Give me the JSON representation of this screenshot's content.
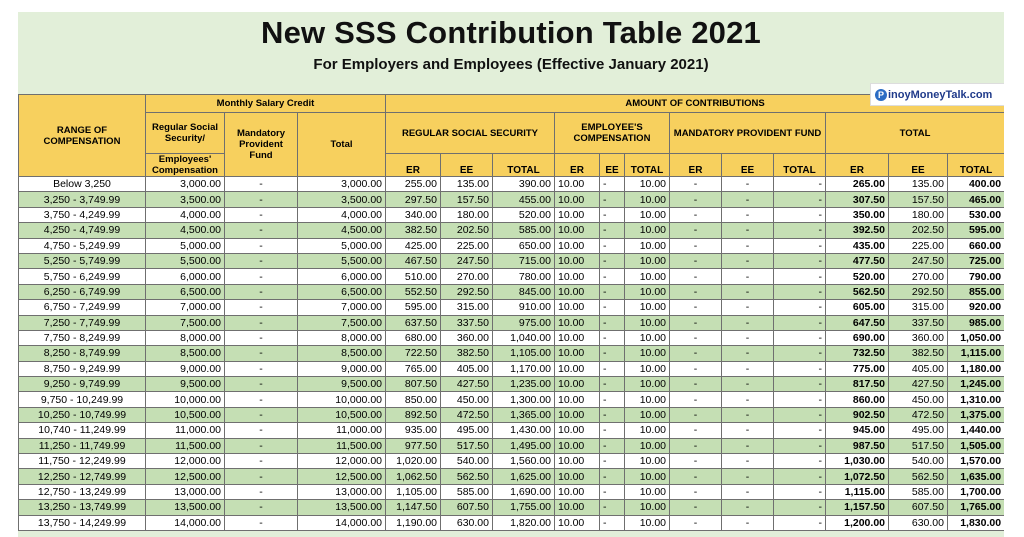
{
  "title": "New SSS Contribution Table 2021",
  "subtitle": "For Employers and Employees (Effective January 2021)",
  "logo": {
    "icon": "P",
    "text": "inoyMoneyTalk.com"
  },
  "headers": {
    "range": "RANGE OF COMPENSATION",
    "monthly_salary_credit": "Monthly Salary Credit",
    "regular_social_security_employees_compensation": "Regular Social Security/",
    "employees_compensation": "Employees' Compensation",
    "mandatory_provident_fund": "Mandatory Provident Fund",
    "total": "Total",
    "amount_of_contributions": "AMOUNT OF CONTRIBUTIONS",
    "regular_social_security": "REGULAR SOCIAL SECURITY",
    "employees_compensation_caps": "EMPLOYEE'S COMPENSATION",
    "mandatory_provident_fund_caps": "MANDATORY PROVIDENT FUND",
    "total_caps": "TOTAL",
    "er": "ER",
    "ee": "EE",
    "total_sub": "TOTAL"
  },
  "rows": [
    [
      "Below 3,250",
      "3,000.00",
      "-",
      "3,000.00",
      "255.00",
      "135.00",
      "390.00",
      "10.00",
      "-",
      "10.00",
      "-",
      "-",
      "-",
      "265.00",
      "135.00",
      "400.00"
    ],
    [
      "3,250 - 3,749.99",
      "3,500.00",
      "-",
      "3,500.00",
      "297.50",
      "157.50",
      "455.00",
      "10.00",
      "-",
      "10.00",
      "-",
      "-",
      "-",
      "307.50",
      "157.50",
      "465.00"
    ],
    [
      "3,750 - 4,249.99",
      "4,000.00",
      "-",
      "4,000.00",
      "340.00",
      "180.00",
      "520.00",
      "10.00",
      "-",
      "10.00",
      "-",
      "-",
      "-",
      "350.00",
      "180.00",
      "530.00"
    ],
    [
      "4,250 - 4,749.99",
      "4,500.00",
      "-",
      "4,500.00",
      "382.50",
      "202.50",
      "585.00",
      "10.00",
      "-",
      "10.00",
      "-",
      "-",
      "-",
      "392.50",
      "202.50",
      "595.00"
    ],
    [
      "4,750 - 5,249.99",
      "5,000.00",
      "-",
      "5,000.00",
      "425.00",
      "225.00",
      "650.00",
      "10.00",
      "-",
      "10.00",
      "-",
      "-",
      "-",
      "435.00",
      "225.00",
      "660.00"
    ],
    [
      "5,250 - 5,749.99",
      "5,500.00",
      "-",
      "5,500.00",
      "467.50",
      "247.50",
      "715.00",
      "10.00",
      "-",
      "10.00",
      "-",
      "-",
      "-",
      "477.50",
      "247.50",
      "725.00"
    ],
    [
      "5,750 - 6,249.99",
      "6,000.00",
      "-",
      "6,000.00",
      "510.00",
      "270.00",
      "780.00",
      "10.00",
      "-",
      "10.00",
      "-",
      "-",
      "-",
      "520.00",
      "270.00",
      "790.00"
    ],
    [
      "6,250 - 6,749.99",
      "6,500.00",
      "-",
      "6,500.00",
      "552.50",
      "292.50",
      "845.00",
      "10.00",
      "-",
      "10.00",
      "-",
      "-",
      "-",
      "562.50",
      "292.50",
      "855.00"
    ],
    [
      "6,750 - 7,249.99",
      "7,000.00",
      "-",
      "7,000.00",
      "595.00",
      "315.00",
      "910.00",
      "10.00",
      "-",
      "10.00",
      "-",
      "-",
      "-",
      "605.00",
      "315.00",
      "920.00"
    ],
    [
      "7,250 - 7,749.99",
      "7,500.00",
      "-",
      "7,500.00",
      "637.50",
      "337.50",
      "975.00",
      "10.00",
      "-",
      "10.00",
      "-",
      "-",
      "-",
      "647.50",
      "337.50",
      "985.00"
    ],
    [
      "7,750 - 8,249.99",
      "8,000.00",
      "-",
      "8,000.00",
      "680.00",
      "360.00",
      "1,040.00",
      "10.00",
      "-",
      "10.00",
      "-",
      "-",
      "-",
      "690.00",
      "360.00",
      "1,050.00"
    ],
    [
      "8,250 - 8,749.99",
      "8,500.00",
      "-",
      "8,500.00",
      "722.50",
      "382.50",
      "1,105.00",
      "10.00",
      "-",
      "10.00",
      "-",
      "-",
      "-",
      "732.50",
      "382.50",
      "1,115.00"
    ],
    [
      "8,750 - 9,249.99",
      "9,000.00",
      "-",
      "9,000.00",
      "765.00",
      "405.00",
      "1,170.00",
      "10.00",
      "-",
      "10.00",
      "-",
      "-",
      "-",
      "775.00",
      "405.00",
      "1,180.00"
    ],
    [
      "9,250 - 9,749.99",
      "9,500.00",
      "-",
      "9,500.00",
      "807.50",
      "427.50",
      "1,235.00",
      "10.00",
      "-",
      "10.00",
      "-",
      "-",
      "-",
      "817.50",
      "427.50",
      "1,245.00"
    ],
    [
      "9,750 - 10,249.99",
      "10,000.00",
      "-",
      "10,000.00",
      "850.00",
      "450.00",
      "1,300.00",
      "10.00",
      "-",
      "10.00",
      "-",
      "-",
      "-",
      "860.00",
      "450.00",
      "1,310.00"
    ],
    [
      "10,250 - 10,749.99",
      "10,500.00",
      "-",
      "10,500.00",
      "892.50",
      "472.50",
      "1,365.00",
      "10.00",
      "-",
      "10.00",
      "-",
      "-",
      "-",
      "902.50",
      "472.50",
      "1,375.00"
    ],
    [
      "10,740 - 11,249.99",
      "11,000.00",
      "-",
      "11,000.00",
      "935.00",
      "495.00",
      "1,430.00",
      "10.00",
      "-",
      "10.00",
      "-",
      "-",
      "-",
      "945.00",
      "495.00",
      "1,440.00"
    ],
    [
      "11,250 - 11,749.99",
      "11,500.00",
      "-",
      "11,500.00",
      "977.50",
      "517.50",
      "1,495.00",
      "10.00",
      "-",
      "10.00",
      "-",
      "-",
      "-",
      "987.50",
      "517.50",
      "1,505.00"
    ],
    [
      "11,750 - 12,249.99",
      "12,000.00",
      "-",
      "12,000.00",
      "1,020.00",
      "540.00",
      "1,560.00",
      "10.00",
      "-",
      "10.00",
      "-",
      "-",
      "-",
      "1,030.00",
      "540.00",
      "1,570.00"
    ],
    [
      "12,250 - 12,749.99",
      "12,500.00",
      "-",
      "12,500.00",
      "1,062.50",
      "562.50",
      "1,625.00",
      "10.00",
      "-",
      "10.00",
      "-",
      "-",
      "-",
      "1,072.50",
      "562.50",
      "1,635.00"
    ],
    [
      "12,750 - 13,249.99",
      "13,000.00",
      "-",
      "13,000.00",
      "1,105.00",
      "585.00",
      "1,690.00",
      "10.00",
      "-",
      "10.00",
      "-",
      "-",
      "-",
      "1,115.00",
      "585.00",
      "1,700.00"
    ],
    [
      "13,250 - 13,749.99",
      "13,500.00",
      "-",
      "13,500.00",
      "1,147.50",
      "607.50",
      "1,755.00",
      "10.00",
      "-",
      "10.00",
      "-",
      "-",
      "-",
      "1,157.50",
      "607.50",
      "1,765.00"
    ],
    [
      "13,750 - 14,249.99",
      "14,000.00",
      "-",
      "14,000.00",
      "1,190.00",
      "630.00",
      "1,820.00",
      "10.00",
      "-",
      "10.00",
      "-",
      "-",
      "-",
      "1,200.00",
      "630.00",
      "1,830.00"
    ]
  ]
}
